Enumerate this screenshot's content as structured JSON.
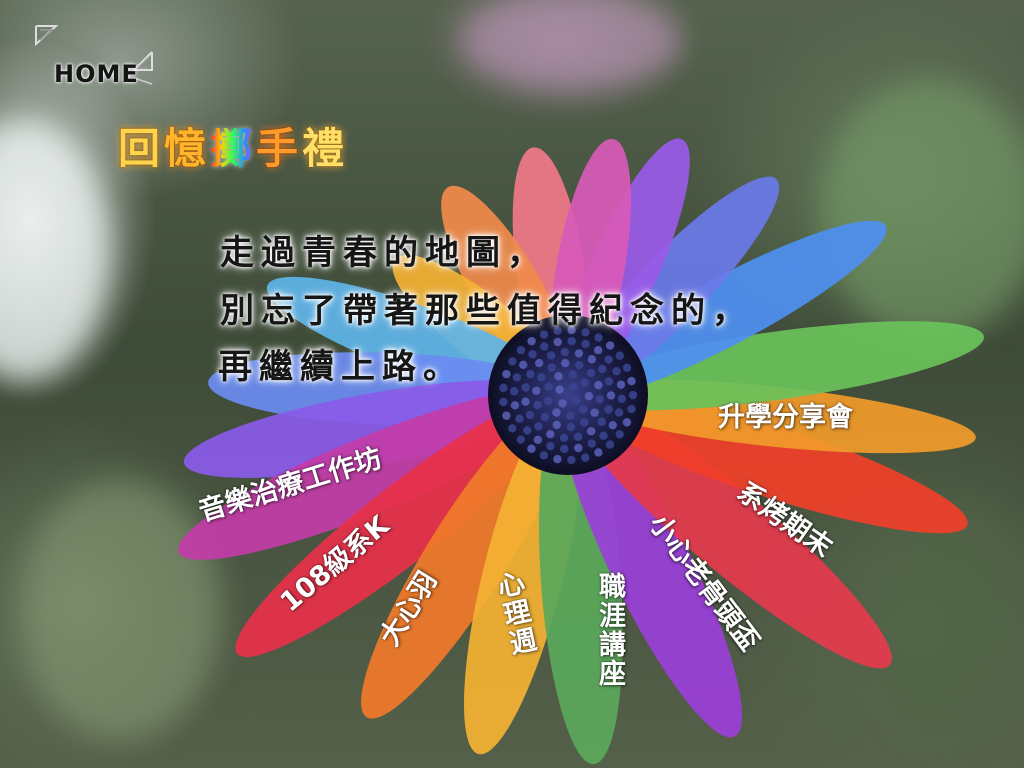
{
  "nav": {
    "home_label": "HOME"
  },
  "title": {
    "chars": [
      "回",
      "憶",
      "擲",
      "手",
      "禮"
    ]
  },
  "poem": {
    "line1": "走過青春的地圖，",
    "line2": "別忘了帶著那些值得紀念的，",
    "line3": "再繼續上路。"
  },
  "petals": {
    "music_therapy": "音樂治療工作坊",
    "class_108": "108級系K",
    "big_heart": "大心羽",
    "psych_week": "心理週",
    "career_talk": "職涯講座",
    "study_share": "升學分享會",
    "bbq_finals": "系烤期末",
    "small_heart": "小心老骨頭盃"
  },
  "colors": {
    "flower_center": "#1d1f4a",
    "petal_red": "#e8304a",
    "petal_orange": "#f08a2a",
    "petal_yellow": "#f3b233",
    "petal_green": "#5aa85a",
    "petal_blue": "#3f7fe0",
    "petal_purple": "#9a3fd8",
    "petal_magenta": "#c23ca8"
  }
}
